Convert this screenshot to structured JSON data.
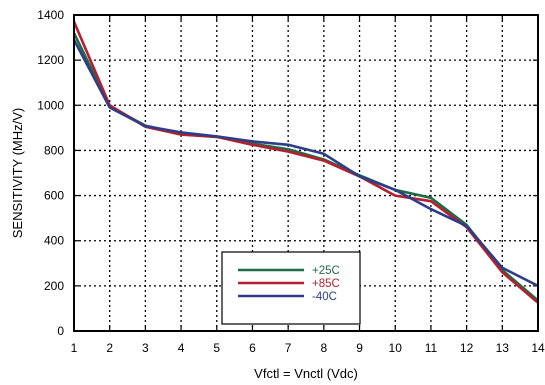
{
  "chart_data": {
    "type": "line",
    "title": "",
    "xlabel": "Vfctl = Vnctl (Vdc)",
    "ylabel": "SENSITIVITY (MHz/V)",
    "xlim": [
      1,
      14
    ],
    "ylim": [
      0,
      1400
    ],
    "x_ticks": [
      1,
      2,
      3,
      4,
      5,
      6,
      7,
      8,
      9,
      10,
      11,
      12,
      13,
      14
    ],
    "y_ticks": [
      0,
      200,
      400,
      600,
      800,
      1000,
      1200,
      1400
    ],
    "grid": true,
    "grid_style": "dotted",
    "legend_position": "bottom-center",
    "series": [
      {
        "name": "+25C",
        "color": "#1e6b45",
        "x": [
          1,
          2,
          3,
          4,
          5,
          6,
          7,
          8,
          9,
          10,
          11,
          12,
          13,
          14
        ],
        "y": [
          1320,
          995,
          910,
          875,
          860,
          830,
          805,
          760,
          690,
          625,
          590,
          470,
          270,
          135
        ]
      },
      {
        "name": "+85C",
        "color": "#b5202e",
        "x": [
          1,
          2,
          3,
          4,
          5,
          6,
          7,
          8,
          9,
          10,
          11,
          12,
          13,
          14
        ],
        "y": [
          1370,
          1000,
          905,
          870,
          860,
          825,
          795,
          755,
          685,
          600,
          575,
          460,
          260,
          125
        ]
      },
      {
        "name": "-40C",
        "color": "#2e3d8a",
        "x": [
          1,
          2,
          3,
          4,
          5,
          6,
          7,
          8,
          9,
          10,
          11,
          12,
          13,
          14
        ],
        "y": [
          1290,
          990,
          908,
          880,
          862,
          840,
          825,
          785,
          685,
          625,
          540,
          465,
          280,
          200
        ]
      }
    ]
  }
}
